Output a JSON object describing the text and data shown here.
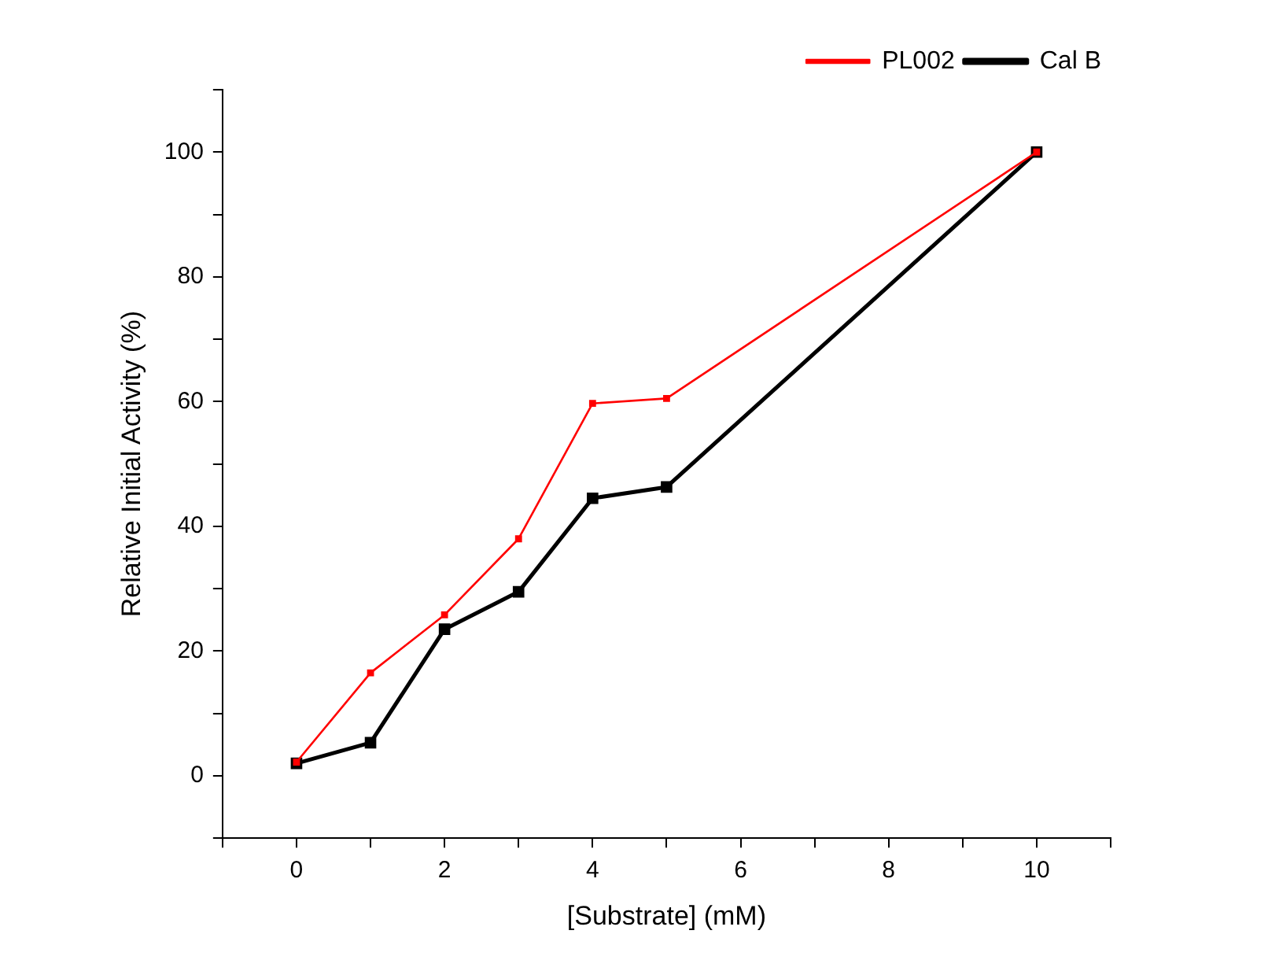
{
  "chart_data": {
    "type": "line",
    "xlabel": "[Substrate] (mM)",
    "ylabel": "Relative Initial Activity (%)",
    "x": [
      0,
      1,
      2,
      3,
      4,
      5,
      10
    ],
    "series": [
      {
        "name": "Cal B",
        "color": "#000000",
        "values": [
          2,
          5.3,
          23.5,
          29.5,
          44.5,
          46.3,
          100
        ]
      },
      {
        "name": "PL002",
        "color": "#ff0000",
        "values": [
          2.2,
          16.5,
          25.8,
          38,
          59.7,
          60.5,
          100
        ]
      }
    ],
    "xlim": [
      -1,
      11
    ],
    "xticks": [
      {
        "value": -1,
        "label": null
      },
      0,
      {
        "value": 1,
        "label": null
      },
      2,
      {
        "value": 3,
        "label": null
      },
      4,
      {
        "value": 5,
        "label": null
      },
      6,
      {
        "value": 7,
        "label": null
      },
      8,
      {
        "value": 9,
        "label": null
      },
      10,
      {
        "value": 11,
        "label": null
      }
    ],
    "ylim": [
      -10,
      110
    ],
    "yticks": [
      {
        "value": -10,
        "label": null
      },
      0,
      {
        "value": 10,
        "label": null
      },
      20,
      {
        "value": 30,
        "label": null
      },
      40,
      {
        "value": 50,
        "label": null
      },
      60,
      {
        "value": 70,
        "label": null
      },
      80,
      {
        "value": 90,
        "label": null
      },
      100,
      {
        "value": 110,
        "label": null
      }
    ],
    "grid": false,
    "legend": "top right",
    "marker": "square",
    "line_style": "solid"
  }
}
